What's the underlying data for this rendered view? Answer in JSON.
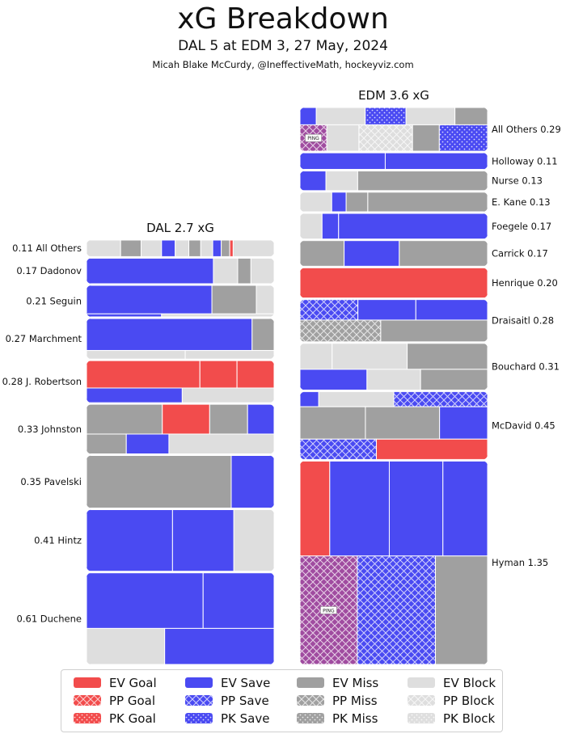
{
  "title": "xG Breakdown",
  "subtitle": "DAL 5 at EDM 3, 27 May, 2024",
  "credit": "Micah Blake McCurdy, @IneffectiveMath, hockeyviz.com",
  "colors": {
    "goal": "#f24c4c",
    "save": "#4a4af2",
    "miss": "#a0a0a0",
    "block": "#dedede",
    "ping": "#a04ca0"
  },
  "chart_data": {
    "type": "treemap",
    "teams": [
      {
        "label": "DAL 2.7 xG",
        "team": "DAL",
        "xg": 2.7,
        "players": [
          {
            "name": "All Others",
            "label": "0.11 All Others",
            "xg": 0.11,
            "shots": [
              [
                "block",
                0.02
              ],
              [
                "miss",
                0.012
              ],
              [
                "block",
                0.012
              ],
              [
                "save",
                0.008
              ],
              [
                "block",
                0.008
              ],
              [
                "miss",
                0.007
              ],
              [
                "block",
                0.007
              ],
              [
                "save",
                0.005
              ],
              [
                "miss",
                0.005
              ],
              [
                "goal",
                0.002
              ],
              [
                "block",
                0.024
              ]
            ]
          },
          {
            "name": "Dadonov",
            "label": "0.17 Dadonov",
            "xg": 0.17,
            "shots": [
              [
                "save",
                0.115
              ],
              [
                "block",
                0.022
              ],
              [
                "miss",
                0.012
              ],
              [
                "block",
                0.021
              ]
            ]
          },
          {
            "name": "Seguin",
            "label": "0.21 Seguin",
            "xg": 0.21,
            "shots": [
              [
                "save",
                0.127
              ],
              [
                "miss",
                0.045
              ],
              [
                "block",
                0.018
              ],
              [
                "save",
                0.008
              ],
              [
                "block",
                0.012
              ]
            ]
          },
          {
            "name": "Marchment",
            "label": "0.27 Marchment",
            "xg": 0.27,
            "shots": [
              [
                "save",
                0.188
              ],
              [
                "miss",
                0.025
              ],
              [
                "block",
                0.03
              ],
              [
                "block",
                0.027
              ]
            ]
          },
          {
            "name": "J. Robertson",
            "label": "0.28 J. Robertson",
            "xg": 0.28,
            "shots": [
              [
                "goal",
                0.11
              ],
              [
                "goal",
                0.036
              ],
              [
                "goal",
                0.036
              ],
              [
                "save",
                0.05
              ],
              [
                "block",
                0.048
              ]
            ]
          },
          {
            "name": "Johnston",
            "label": "0.33 Johnston",
            "xg": 0.33,
            "shots": [
              [
                "miss",
                0.08
              ],
              [
                "goal",
                0.05
              ],
              [
                "miss",
                0.04
              ],
              [
                "save",
                0.028
              ],
              [
                "miss",
                0.028
              ],
              [
                "save",
                0.03
              ],
              [
                "block",
                0.074
              ]
            ]
          },
          {
            "name": "Pavelski",
            "label": "0.35 Pavelski",
            "xg": 0.35,
            "shots": [
              [
                "miss",
                0.27
              ],
              [
                "save",
                0.08
              ]
            ]
          },
          {
            "name": "Hintz",
            "label": "0.41 Hintz",
            "xg": 0.41,
            "shots": [
              [
                "save",
                0.188
              ],
              [
                "save",
                0.134
              ],
              [
                "block",
                0.088
              ]
            ]
          },
          {
            "name": "Duchene",
            "label": "0.61 Duchene",
            "xg": 0.61,
            "shots": [
              [
                "save",
                0.23
              ],
              [
                "save",
                0.14
              ],
              [
                "block",
                0.1
              ],
              [
                "save",
                0.14
              ]
            ]
          }
        ]
      },
      {
        "label": "EDM 3.6 xG",
        "team": "EDM",
        "xg": 3.6,
        "players": [
          {
            "name": "All Others",
            "label": "All Others 0.29",
            "xg": 0.29,
            "shots": [
              [
                "save",
                0.01
              ],
              [
                "block",
                0.03
              ],
              [
                "pk_save",
                0.025
              ],
              [
                "block",
                0.03
              ],
              [
                "miss",
                0.02
              ],
              [
                "pp_ping",
                0.025
              ],
              [
                "block",
                0.03
              ],
              [
                "pp_block",
                0.05
              ],
              [
                "miss",
                0.025
              ],
              [
                "pk_save",
                0.045
              ]
            ]
          },
          {
            "name": "Holloway",
            "label": "Holloway 0.11",
            "xg": 0.11,
            "shots": [
              [
                "save",
                0.05
              ],
              [
                "save",
                0.06
              ]
            ]
          },
          {
            "name": "Nurse",
            "label": "Nurse 0.13",
            "xg": 0.13,
            "shots": [
              [
                "save",
                0.018
              ],
              [
                "block",
                0.022
              ],
              [
                "miss",
                0.09
              ]
            ]
          },
          {
            "name": "E. Kane",
            "label": "E. Kane 0.13",
            "xg": 0.13,
            "shots": [
              [
                "block",
                0.022
              ],
              [
                "save",
                0.01
              ],
              [
                "miss",
                0.015
              ],
              [
                "miss",
                0.083
              ]
            ]
          },
          {
            "name": "Foegele",
            "label": "Foegele 0.17",
            "xg": 0.17,
            "shots": [
              [
                "block",
                0.02
              ],
              [
                "save",
                0.015
              ],
              [
                "save",
                0.135
              ]
            ]
          },
          {
            "name": "Carrick",
            "label": "Carrick 0.17",
            "xg": 0.17,
            "shots": [
              [
                "miss",
                0.04
              ],
              [
                "save",
                0.05
              ],
              [
                "miss",
                0.08
              ]
            ]
          },
          {
            "name": "Henrique",
            "label": "Henrique 0.20",
            "xg": 0.2,
            "shots": [
              [
                "goal",
                0.2
              ]
            ]
          },
          {
            "name": "Draisaitl",
            "label": "Draisaitl 0.28",
            "xg": 0.28,
            "shots": [
              [
                "pp_save",
                0.042
              ],
              [
                "save",
                0.042
              ],
              [
                "save",
                0.052
              ],
              [
                "pp_miss",
                0.062
              ],
              [
                "miss",
                0.082
              ]
            ]
          },
          {
            "name": "Bouchard",
            "label": "Bouchard 0.31",
            "xg": 0.31,
            "shots": [
              [
                "block",
                0.03
              ],
              [
                "block",
                0.07
              ],
              [
                "miss",
                0.075
              ],
              [
                "save",
                0.05
              ],
              [
                "block",
                0.04
              ],
              [
                "miss",
                0.05
              ]
            ]
          },
          {
            "name": "McDavid",
            "label": "McDavid 0.45",
            "xg": 0.45,
            "shots": [
              [
                "save",
                0.01
              ],
              [
                "block",
                0.04
              ],
              [
                "pp_save",
                0.05
              ],
              [
                "miss",
                0.075
              ],
              [
                "miss",
                0.085
              ],
              [
                "save",
                0.055
              ],
              [
                "pp_save",
                0.055
              ],
              [
                "goal",
                0.08
              ]
            ]
          },
          {
            "name": "Hyman",
            "label": "Hyman 1.35",
            "xg": 1.35,
            "shots": [
              [
                "goal",
                0.1
              ],
              [
                "save",
                0.2
              ],
              [
                "save",
                0.18
              ],
              [
                "save",
                0.15
              ],
              [
                "pp_ping",
                0.22
              ],
              [
                "pp_save",
                0.3
              ],
              [
                "miss",
                0.2
              ]
            ]
          }
        ]
      }
    ],
    "legend": {
      "columns": [
        [
          {
            "label": "EV Goal",
            "kind": "goal",
            "pattern": "solid"
          },
          {
            "label": "PP Goal",
            "kind": "goal",
            "pattern": "pp"
          },
          {
            "label": "PK Goal",
            "kind": "goal",
            "pattern": "pk"
          }
        ],
        [
          {
            "label": "EV Save",
            "kind": "save",
            "pattern": "solid"
          },
          {
            "label": "PP Save",
            "kind": "save",
            "pattern": "pp"
          },
          {
            "label": "PK Save",
            "kind": "save",
            "pattern": "pk"
          }
        ],
        [
          {
            "label": "EV Miss",
            "kind": "miss",
            "pattern": "solid"
          },
          {
            "label": "PP Miss",
            "kind": "miss",
            "pattern": "pp"
          },
          {
            "label": "PK Miss",
            "kind": "miss",
            "pattern": "pk"
          }
        ],
        [
          {
            "label": "EV Block",
            "kind": "block",
            "pattern": "solid"
          },
          {
            "label": "PP Block",
            "kind": "block",
            "pattern": "pp"
          },
          {
            "label": "PK Block",
            "kind": "block",
            "pattern": "pk"
          }
        ]
      ]
    },
    "ping_label": "PING"
  }
}
